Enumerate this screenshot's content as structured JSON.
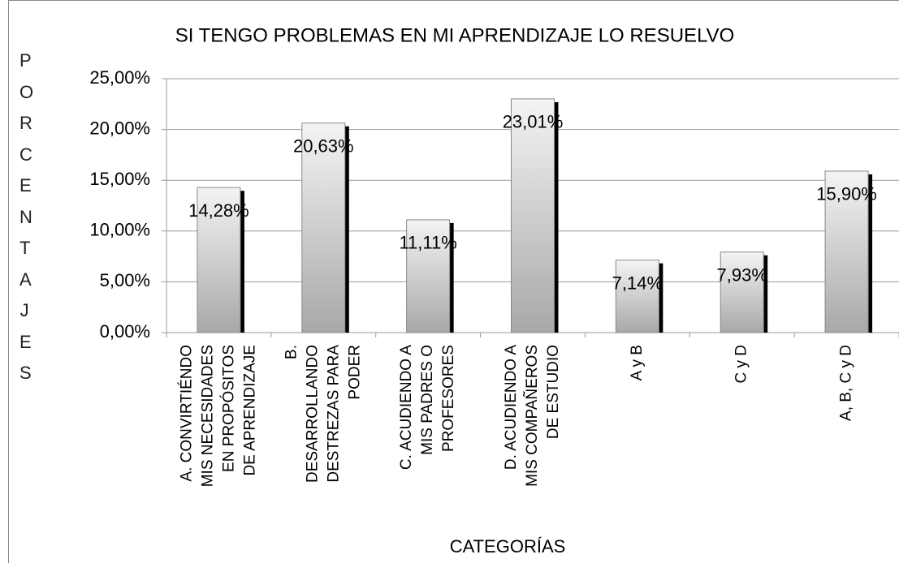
{
  "chart_data": {
    "type": "bar",
    "title": "SI TENGO PROBLEMAS EN MI APRENDIZAJE LO RESUELVO",
    "y_label": "PORCENTAJES",
    "x_label": "CATEGORÍAS",
    "categories": [
      [
        "A. CONVIRTIÉNDO",
        "MIS NECESIDADES",
        "EN PROPÓSITOS",
        "DE APRENDIZAJE"
      ],
      [
        "B.",
        "DESARROLLANDO",
        "DESTREZAS PARA",
        "PODER"
      ],
      [
        "C. ACUDIENDO A",
        "MIS PADRES O",
        "PROFESORES"
      ],
      [
        "D. ACUDIENDO A",
        "MIS COMPAÑEROS",
        "DE ESTUDIO"
      ],
      [
        "A y B"
      ],
      [
        "C y D"
      ],
      [
        "A, B, C y D"
      ]
    ],
    "values": [
      14.28,
      20.63,
      11.11,
      23.01,
      7.14,
      7.93,
      15.9
    ],
    "value_labels": [
      "14,28%",
      "20,63%",
      "11,11%",
      "23,01%",
      "7,14%",
      "7,93%",
      "15,90%"
    ],
    "ylim": [
      0,
      25
    ],
    "yticks": [
      {
        "value": 0,
        "label": "0,00%"
      },
      {
        "value": 5,
        "label": "5,00%"
      },
      {
        "value": 10,
        "label": "10,00%"
      },
      {
        "value": 15,
        "label": "15,00%"
      },
      {
        "value": 20,
        "label": "20,00%"
      },
      {
        "value": 25,
        "label": "25,00%"
      }
    ],
    "grid": true
  }
}
